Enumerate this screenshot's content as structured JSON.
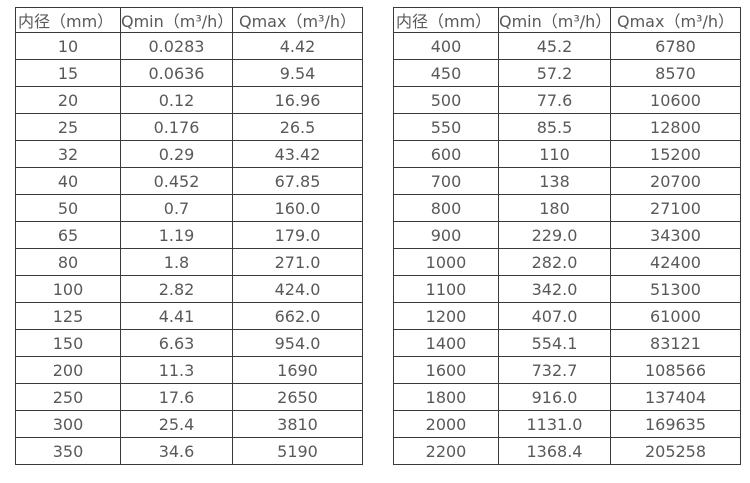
{
  "styles": {
    "background": "#ffffff",
    "border_color": "#3a3a3a",
    "text_color": "#595959"
  },
  "left_table": {
    "headers": [
      "内径（mm）",
      "Qmin（m³/h）",
      "Qmax（m³/h）"
    ],
    "rows": [
      [
        "10",
        "0.0283",
        "4.42"
      ],
      [
        "15",
        "0.0636",
        "9.54"
      ],
      [
        "20",
        "0.12",
        "16.96"
      ],
      [
        "25",
        "0.176",
        "26.5"
      ],
      [
        "32",
        "0.29",
        "43.42"
      ],
      [
        "40",
        "0.452",
        "67.85"
      ],
      [
        "50",
        "0.7",
        "160.0"
      ],
      [
        "65",
        "1.19",
        "179.0"
      ],
      [
        "80",
        "1.8",
        "271.0"
      ],
      [
        "100",
        "2.82",
        "424.0"
      ],
      [
        "125",
        "4.41",
        "662.0"
      ],
      [
        "150",
        "6.63",
        "954.0"
      ],
      [
        "200",
        "11.3",
        "1690"
      ],
      [
        "250",
        "17.6",
        "2650"
      ],
      [
        "300",
        "25.4",
        "3810"
      ],
      [
        "350",
        "34.6",
        "5190"
      ]
    ]
  },
  "right_table": {
    "headers": [
      "内径（mm）",
      "Qmin（m³/h）",
      "Qmax（m³/h）"
    ],
    "rows": [
      [
        "400",
        "45.2",
        "6780"
      ],
      [
        "450",
        "57.2",
        "8570"
      ],
      [
        "500",
        "77.6",
        "10600"
      ],
      [
        "550",
        "85.5",
        "12800"
      ],
      [
        "600",
        "110",
        "15200"
      ],
      [
        "700",
        "138",
        "20700"
      ],
      [
        "800",
        "180",
        "27100"
      ],
      [
        "900",
        "229.0",
        "34300"
      ],
      [
        "1000",
        "282.0",
        "42400"
      ],
      [
        "1100",
        "342.0",
        "51300"
      ],
      [
        "1200",
        "407.0",
        "61000"
      ],
      [
        "1400",
        "554.1",
        "83121"
      ],
      [
        "1600",
        "732.7",
        "108566"
      ],
      [
        "1800",
        "916.0",
        "137404"
      ],
      [
        "2000",
        "1131.0",
        "169635"
      ],
      [
        "2200",
        "1368.4",
        "205258"
      ]
    ]
  }
}
